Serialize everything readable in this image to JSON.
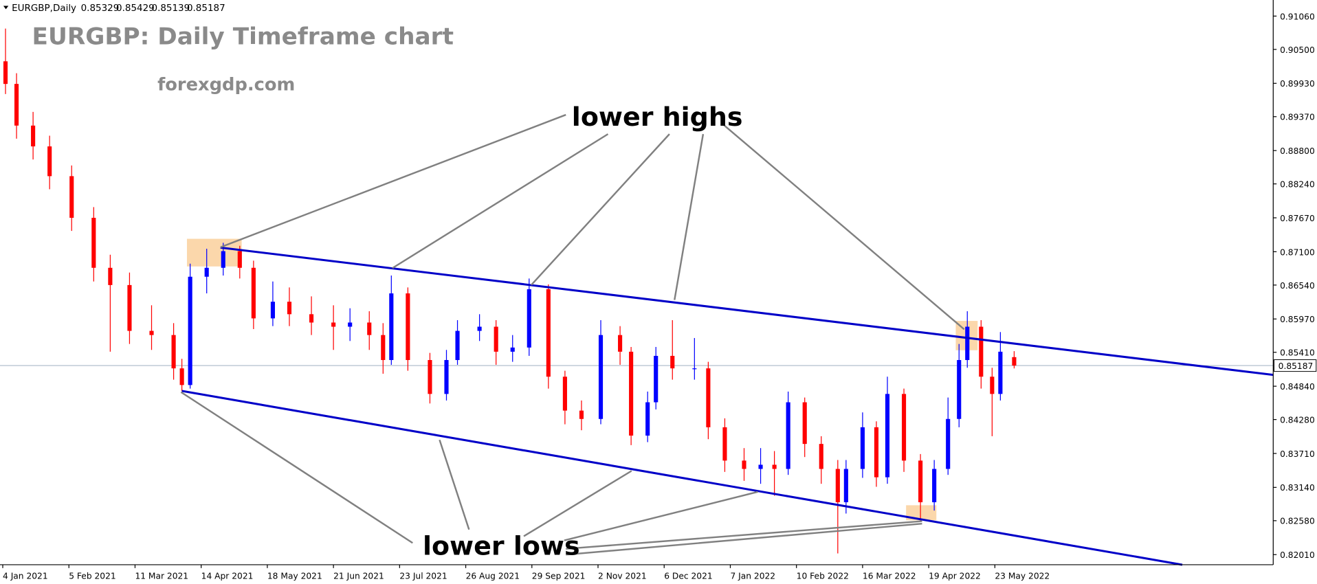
{
  "chart_data": {
    "type": "candlestick",
    "symbol_label": "EURGBP,Daily",
    "title": "EURGBP: Daily Timeframe chart",
    "subtitle": "forexgdp.com",
    "annotations": [
      "lower highs",
      "lower lows"
    ],
    "x": [
      1,
      5,
      11,
      17,
      25,
      33,
      39,
      46,
      54,
      62,
      65,
      68,
      74,
      80,
      86,
      91,
      98,
      104,
      112,
      120,
      126,
      133,
      138,
      141,
      147,
      155,
      161,
      165,
      173,
      179,
      185,
      191,
      198,
      204,
      210,
      217,
      224,
      228,
      234,
      237,
      243,
      251,
      256,
      262,
      269,
      275,
      280,
      285,
      291,
      297,
      303,
      306,
      312,
      317,
      321,
      327,
      333,
      338,
      343,
      347,
      350,
      355,
      359,
      362,
      367
    ],
    "open": [
      0.903,
      0.8992,
      0.8922,
      0.8887,
      0.8837,
      0.8767,
      0.8683,
      0.8654,
      0.8577,
      0.857,
      0.8514,
      0.8486,
      0.8668,
      0.8683,
      0.8711,
      0.8683,
      0.8598,
      0.8626,
      0.8605,
      0.8591,
      0.8584,
      0.8591,
      0.857,
      0.8528,
      0.864,
      0.8528,
      0.8471,
      0.8528,
      0.8577,
      0.8584,
      0.8542,
      0.8549,
      0.8647,
      0.85,
      0.8443,
      0.8429,
      0.857,
      0.8542,
      0.8401,
      0.8457,
      0.8535,
      0.8514,
      0.8514,
      0.8415,
      0.8359,
      0.8345,
      0.8352,
      0.8345,
      0.8457,
      0.8387,
      0.8345,
      0.8289,
      0.8345,
      0.8415,
      0.8331,
      0.8471,
      0.8359,
      0.8289,
      0.8345,
      0.8429,
      0.8528,
      0.8584,
      0.85,
      0.8471,
      0.85329
    ],
    "high": [
      0.9085,
      0.901,
      0.8945,
      0.8905,
      0.8855,
      0.8785,
      0.8705,
      0.8675,
      0.862,
      0.859,
      0.853,
      0.869,
      0.8715,
      0.8725,
      0.872,
      0.8695,
      0.866,
      0.865,
      0.8635,
      0.862,
      0.8615,
      0.861,
      0.859,
      0.867,
      0.865,
      0.854,
      0.8545,
      0.8595,
      0.8605,
      0.8595,
      0.857,
      0.8665,
      0.8655,
      0.851,
      0.846,
      0.8595,
      0.8585,
      0.855,
      0.8475,
      0.855,
      0.8595,
      0.8565,
      0.8525,
      0.843,
      0.838,
      0.838,
      0.8375,
      0.8475,
      0.8465,
      0.84,
      0.836,
      0.836,
      0.844,
      0.8425,
      0.85,
      0.848,
      0.837,
      0.836,
      0.8465,
      0.8555,
      0.861,
      0.8595,
      0.8515,
      0.8575,
      0.85429
    ],
    "low": [
      0.8975,
      0.89,
      0.8865,
      0.8815,
      0.8745,
      0.866,
      0.8542,
      0.8555,
      0.8545,
      0.8495,
      0.8476,
      0.848,
      0.864,
      0.867,
      0.8665,
      0.858,
      0.8585,
      0.8585,
      0.857,
      0.8545,
      0.856,
      0.8545,
      0.8505,
      0.852,
      0.851,
      0.8455,
      0.846,
      0.852,
      0.856,
      0.852,
      0.8525,
      0.8535,
      0.848,
      0.842,
      0.841,
      0.842,
      0.852,
      0.8385,
      0.839,
      0.8445,
      0.8495,
      0.8495,
      0.8395,
      0.834,
      0.8325,
      0.832,
      0.83,
      0.8335,
      0.8365,
      0.832,
      0.8203,
      0.827,
      0.833,
      0.8315,
      0.832,
      0.834,
      0.8258,
      0.8275,
      0.8335,
      0.8415,
      0.8515,
      0.848,
      0.84,
      0.846,
      0.85139
    ],
    "close": [
      0.8992,
      0.8922,
      0.8887,
      0.8837,
      0.8767,
      0.8683,
      0.8654,
      0.8577,
      0.857,
      0.8514,
      0.8486,
      0.8668,
      0.8683,
      0.8711,
      0.8683,
      0.8598,
      0.8626,
      0.8605,
      0.8591,
      0.8584,
      0.8591,
      0.857,
      0.8528,
      0.864,
      0.8528,
      0.8471,
      0.8528,
      0.8577,
      0.8584,
      0.8542,
      0.8549,
      0.8647,
      0.85,
      0.8443,
      0.8429,
      0.857,
      0.8542,
      0.8401,
      0.8457,
      0.8535,
      0.8514,
      0.8514,
      0.8415,
      0.8359,
      0.8345,
      0.8352,
      0.8345,
      0.8457,
      0.8387,
      0.8345,
      0.8289,
      0.8345,
      0.8415,
      0.8331,
      0.8471,
      0.8359,
      0.8289,
      0.8345,
      0.8429,
      0.8528,
      0.8584,
      0.85,
      0.8471,
      0.8542,
      0.85187
    ],
    "up_color": "#0000ff",
    "down_color": "#ff0000",
    "trendline_color": "#0000c8",
    "trendlines": [
      {
        "x": [
          79,
          461
        ],
        "y": [
          0.8717,
          0.8503
        ]
      },
      {
        "x": [
          65,
          428
        ],
        "y": [
          0.8476,
          0.8184
        ]
      }
    ],
    "xlim": [
      -1,
      461
    ],
    "ylim": [
      0.8184,
      0.9126
    ],
    "xticks": [
      {
        "value": 0,
        "label": "4 Jan 2021"
      },
      {
        "value": 24,
        "label": "5 Feb 2021"
      },
      {
        "value": 48,
        "label": "11 Mar 2021"
      },
      {
        "value": 72,
        "label": "14 Apr 2021"
      },
      {
        "value": 96,
        "label": "18 May 2021"
      },
      {
        "value": 120,
        "label": "21 Jun 2021"
      },
      {
        "value": 144,
        "label": "23 Jul 2021"
      },
      {
        "value": 168,
        "label": "26 Aug 2021"
      },
      {
        "value": 192,
        "label": "29 Sep 2021"
      },
      {
        "value": 216,
        "label": "2 Nov 2021"
      },
      {
        "value": 240,
        "label": "6 Dec 2021"
      },
      {
        "value": 264,
        "label": "7 Jan 2022"
      },
      {
        "value": 288,
        "label": "10 Feb 2022"
      },
      {
        "value": 312,
        "label": "16 Mar 2022"
      },
      {
        "value": 336,
        "label": "19 Apr 2022"
      },
      {
        "value": 360,
        "label": "23 May 2022"
      }
    ],
    "yticks": [
      {
        "value": 0.9106,
        "label": "0.91060"
      },
      {
        "value": 0.905,
        "label": "0.90500"
      },
      {
        "value": 0.8993,
        "label": "0.89930"
      },
      {
        "value": 0.8937,
        "label": "0.89370"
      },
      {
        "value": 0.888,
        "label": "0.88800"
      },
      {
        "value": 0.8824,
        "label": "0.88240"
      },
      {
        "value": 0.8767,
        "label": "0.87670"
      },
      {
        "value": 0.871,
        "label": "0.87100"
      },
      {
        "value": 0.8654,
        "label": "0.86540"
      },
      {
        "value": 0.8597,
        "label": "0.85970"
      },
      {
        "value": 0.8541,
        "label": "0.85410"
      },
      {
        "value": 0.8484,
        "label": "0.84840"
      },
      {
        "value": 0.8428,
        "label": "0.84280"
      },
      {
        "value": 0.8371,
        "label": "0.83710"
      },
      {
        "value": 0.8314,
        "label": "0.83140"
      },
      {
        "value": 0.8258,
        "label": "0.82580"
      },
      {
        "value": 0.8201,
        "label": "0.82010"
      }
    ]
  }
}
